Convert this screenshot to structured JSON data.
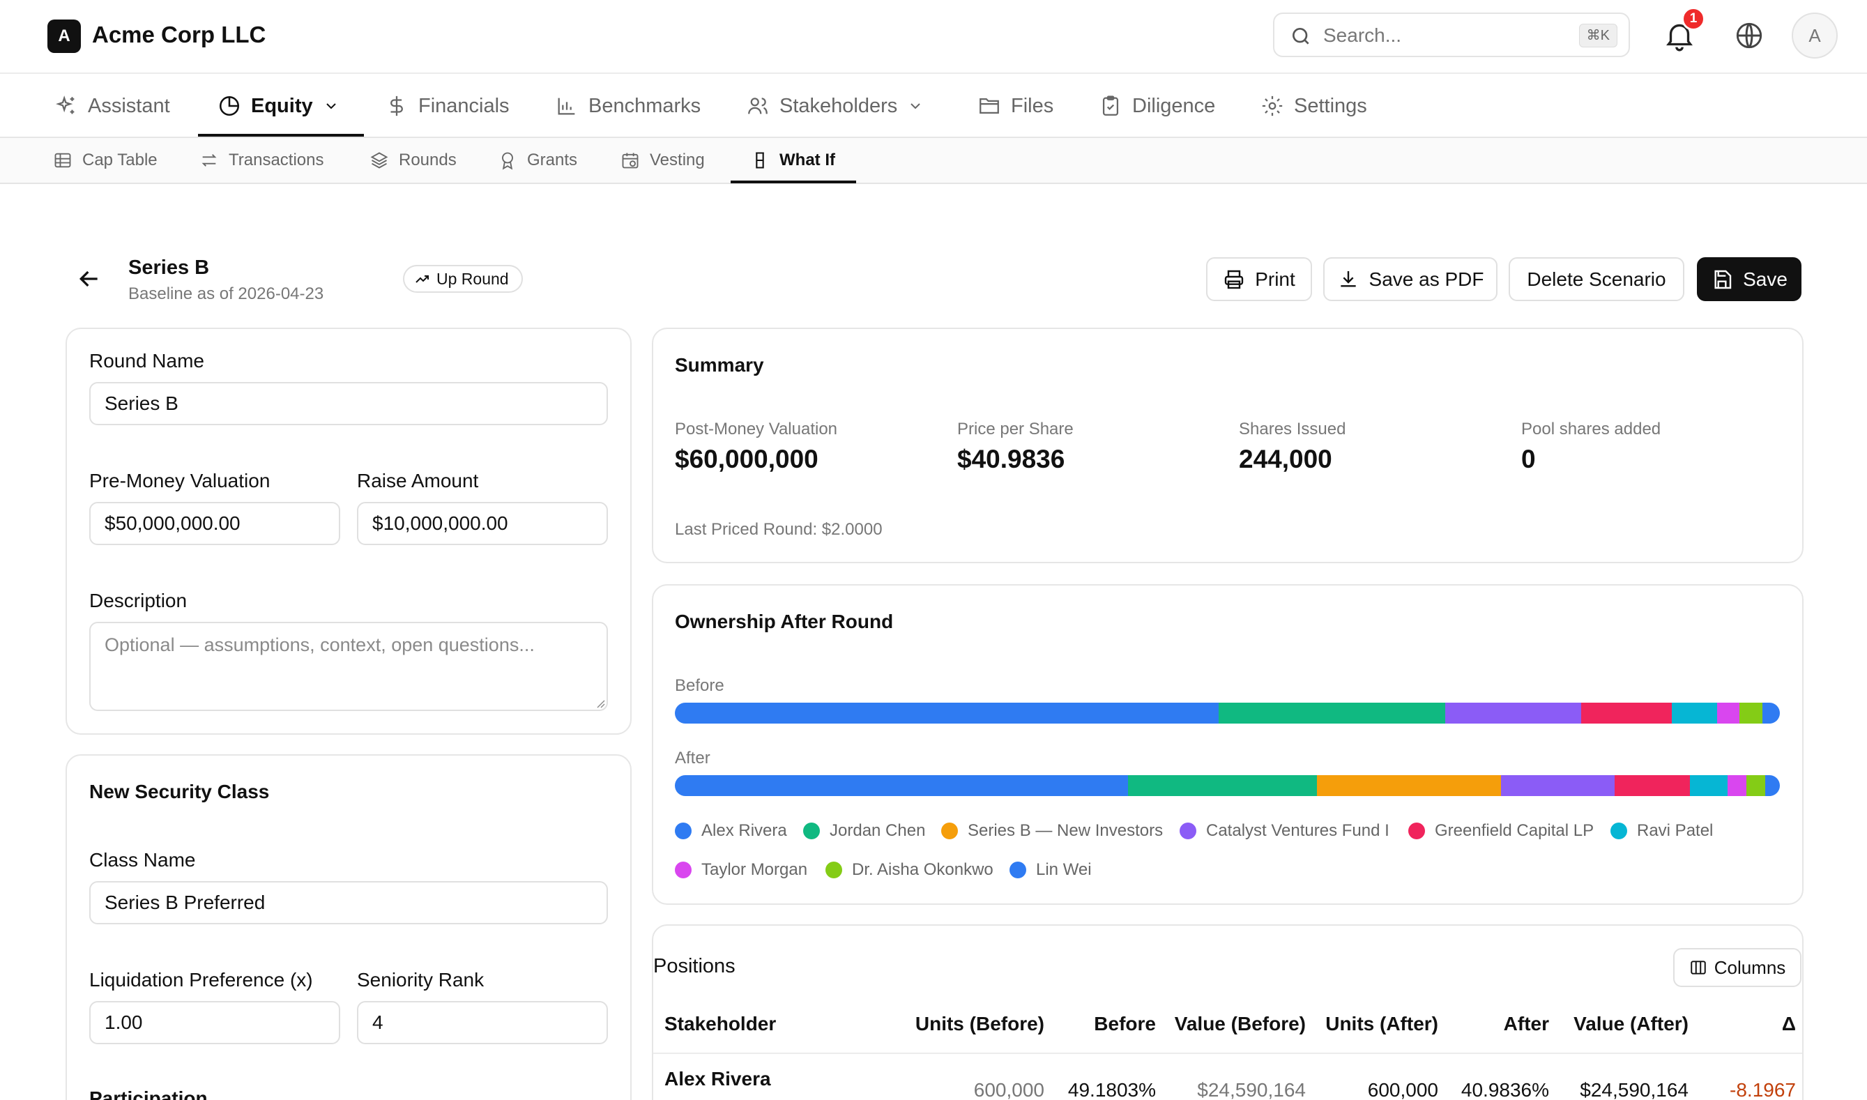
{
  "header": {
    "logo_letter": "A",
    "org_name": "Acme Corp LLC",
    "search_placeholder": "Search...",
    "search_shortcut": "⌘K",
    "notification_count": "1",
    "avatar_letter": "A"
  },
  "nav": {
    "items": [
      {
        "label": "Assistant",
        "icon": "sparkles-icon"
      },
      {
        "label": "Equity",
        "icon": "pie-chart-icon",
        "active": true,
        "dropdown": true
      },
      {
        "label": "Financials",
        "icon": "dollar-icon"
      },
      {
        "label": "Benchmarks",
        "icon": "bar-chart-icon"
      },
      {
        "label": "Stakeholders",
        "icon": "users-icon",
        "dropdown": true
      },
      {
        "label": "Files",
        "icon": "folder-icon"
      },
      {
        "label": "Diligence",
        "icon": "clipboard-check-icon"
      },
      {
        "label": "Settings",
        "icon": "gear-icon"
      }
    ]
  },
  "subnav": {
    "items": [
      {
        "label": "Cap Table",
        "icon": "table-icon"
      },
      {
        "label": "Transactions",
        "icon": "arrows-icon"
      },
      {
        "label": "Rounds",
        "icon": "layers-icon"
      },
      {
        "label": "Grants",
        "icon": "award-icon"
      },
      {
        "label": "Vesting",
        "icon": "calendar-clock-icon"
      },
      {
        "label": "What If",
        "icon": "flask-icon",
        "active": true
      }
    ]
  },
  "scenario": {
    "title": "Series B",
    "subtitle": "Baseline as of 2026-04-23",
    "badge": "Up Round",
    "actions": {
      "print": "Print",
      "pdf": "Save as PDF",
      "delete": "Delete Scenario",
      "save": "Save"
    }
  },
  "round_form": {
    "round_name_label": "Round Name",
    "round_name_value": "Series B",
    "pre_money_label": "Pre-Money Valuation",
    "pre_money_value": "$50,000,000.00",
    "raise_label": "Raise Amount",
    "raise_value": "$10,000,000.00",
    "description_label": "Description",
    "description_placeholder": "Optional — assumptions, context, open questions..."
  },
  "security_class": {
    "title": "New Security Class",
    "class_name_label": "Class Name",
    "class_name_value": "Series B Preferred",
    "liq_pref_label": "Liquidation Preference (x)",
    "liq_pref_value": "1.00",
    "seniority_label": "Seniority Rank",
    "seniority_value": "4",
    "participation_label": "Participation"
  },
  "summary": {
    "title": "Summary",
    "metrics": [
      {
        "label": "Post-Money Valuation",
        "value": "$60,000,000"
      },
      {
        "label": "Price per Share",
        "value": "$40.9836"
      },
      {
        "label": "Shares Issued",
        "value": "244,000"
      },
      {
        "label": "Pool shares added",
        "value": "0"
      }
    ],
    "last_priced": "Last Priced Round: $2.0000"
  },
  "ownership": {
    "title": "Ownership After Round",
    "before_label": "Before",
    "after_label": "After",
    "colors": {
      "Alex Rivera": "#2f7bf2",
      "Jordan Chen": "#10b981",
      "Series B — New Investors": "#f59e0b",
      "Catalyst Ventures Fund I": "#8b5cf6",
      "Greenfield Capital LP": "#f0245c",
      "Ravi Patel": "#06b6d4",
      "Taylor Morgan": "#d946ef",
      "Dr. Aisha Okonkwo": "#84cc16",
      "Lin Wei": "#2f7bf2"
    },
    "before_pct": [
      {
        "name": "Alex Rivera",
        "pct": 49.18
      },
      {
        "name": "Jordan Chen",
        "pct": 20.5
      },
      {
        "name": "Catalyst Ventures Fund I",
        "pct": 12.3
      },
      {
        "name": "Greenfield Capital LP",
        "pct": 8.2
      },
      {
        "name": "Ravi Patel",
        "pct": 4.1
      },
      {
        "name": "Taylor Morgan",
        "pct": 2.05
      },
      {
        "name": "Dr. Aisha Okonkwo",
        "pct": 2.05
      },
      {
        "name": "Lin Wei",
        "pct": 1.6
      }
    ],
    "after_pct": [
      {
        "name": "Alex Rivera",
        "pct": 40.98
      },
      {
        "name": "Jordan Chen",
        "pct": 17.1
      },
      {
        "name": "Series B — New Investors",
        "pct": 16.7
      },
      {
        "name": "Catalyst Ventures Fund I",
        "pct": 10.25
      },
      {
        "name": "Greenfield Capital LP",
        "pct": 6.8
      },
      {
        "name": "Ravi Patel",
        "pct": 3.4
      },
      {
        "name": "Taylor Morgan",
        "pct": 1.7
      },
      {
        "name": "Dr. Aisha Okonkwo",
        "pct": 1.7
      },
      {
        "name": "Lin Wei",
        "pct": 1.35
      }
    ],
    "legend": [
      "Alex Rivera",
      "Jordan Chen",
      "Series B — New Investors",
      "Catalyst Ventures Fund I",
      "Greenfield Capital LP",
      "Ravi Patel",
      "Taylor Morgan",
      "Dr. Aisha Okonkwo",
      "Lin Wei"
    ]
  },
  "positions": {
    "title": "Positions",
    "columns_button": "Columns",
    "headers": [
      "Stakeholder",
      "Units (Before)",
      "Before",
      "Value (Before)",
      "Units (After)",
      "After",
      "Value (After)",
      "Δ"
    ],
    "rows": [
      {
        "stakeholder": "Alex Rivera",
        "units_before": "600,000",
        "before": "49.1803%",
        "value_before": "$24,590,164",
        "units_after": "600,000",
        "after": "40.9836%",
        "value_after": "$24,590,164",
        "delta": "-8.1967"
      }
    ]
  }
}
